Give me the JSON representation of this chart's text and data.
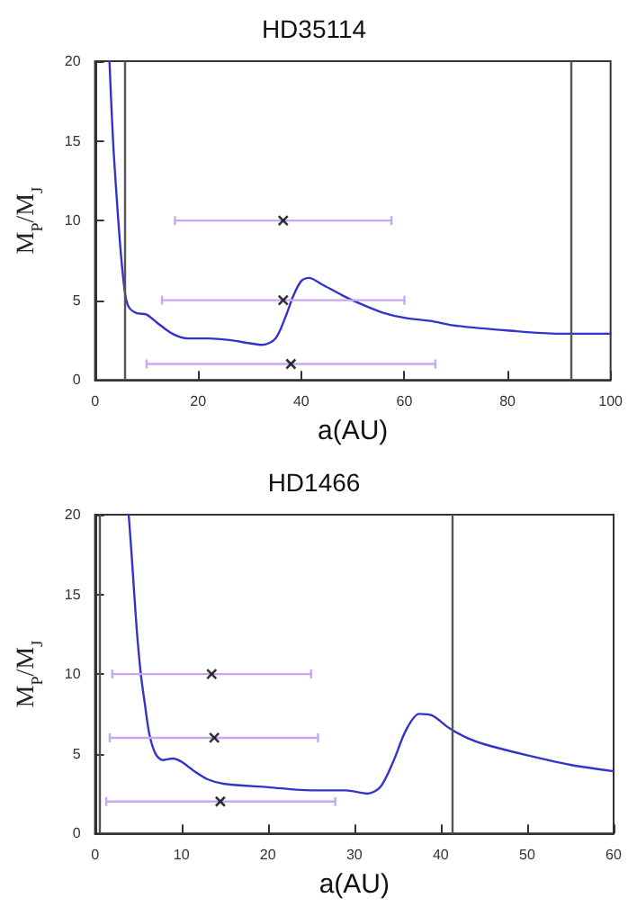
{
  "chart_data": [
    {
      "type": "line",
      "title": "HD35114",
      "xlabel": "a(AU)",
      "ylabel": "M$_{P}$/M$_{J}$",
      "xlim": [
        0,
        100
      ],
      "xticks": [
        0,
        20,
        40,
        60,
        80,
        100
      ],
      "ylim": [
        0,
        20
      ],
      "yticks": [
        0,
        5,
        10,
        15,
        20
      ],
      "grid": false,
      "series": [
        {
          "color": "#3333cc",
          "marker": "none",
          "line_style": "solid",
          "x": [
            2.8,
            3.5,
            4.3,
            5,
            5.8,
            6.5,
            8,
            10,
            12,
            15,
            18,
            22,
            26,
            30,
            32.5,
            35,
            37,
            38.5,
            40,
            41.5,
            44,
            48,
            52,
            56,
            60,
            65,
            70,
            80,
            90,
            100
          ],
          "values": [
            20,
            15,
            11,
            8,
            5.5,
            4.6,
            4.2,
            4.1,
            3.6,
            2.9,
            2.6,
            2.6,
            2.5,
            2.3,
            2.2,
            2.6,
            4,
            5.3,
            6.2,
            6.4,
            6,
            5.3,
            4.7,
            4.2,
            3.9,
            3.7,
            3.4,
            3.1,
            2.9,
            2.9
          ]
        },
        {
          "type": "scatter",
          "color": "#000000",
          "marker": "cross",
          "x": [
            36.5,
            36.5,
            38
          ],
          "values": [
            10,
            5,
            1
          ],
          "xerrors": [
            [
              15.5,
              57.5
            ],
            [
              13,
              60
            ],
            [
              10,
              66
            ]
          ]
        }
      ],
      "ref_lines": [
        {
          "axis": "x",
          "value": 5.8,
          "color": "#555555"
        },
        {
          "axis": "x",
          "value": 92.3,
          "color": "#555555"
        }
      ]
    },
    {
      "type": "line",
      "title": "HD1466",
      "xlabel": "a(AU)",
      "ylabel": "M$_{P}$/M$_{J}$",
      "xlim": [
        0,
        60
      ],
      "xticks": [
        0,
        10,
        20,
        30,
        40,
        50,
        60
      ],
      "ylim": [
        0,
        20
      ],
      "yticks": [
        0,
        5,
        10,
        15,
        20
      ],
      "grid": false,
      "series": [
        {
          "color": "#3333cc",
          "marker": "none",
          "line_style": "solid",
          "x": [
            3.9,
            4.3,
            4.8,
            5.3,
            5.8,
            6.3,
            7,
            7.8,
            9,
            10,
            11.5,
            13,
            15,
            20,
            25,
            29,
            31.5,
            33,
            34.5,
            36,
            37.5,
            39,
            41,
            43,
            45,
            50,
            55,
            60
          ],
          "values": [
            20,
            17,
            13,
            10,
            8,
            6.2,
            5,
            4.6,
            4.7,
            4.5,
            3.9,
            3.4,
            3.1,
            2.9,
            2.7,
            2.7,
            2.5,
            2.9,
            4.5,
            6.5,
            7.5,
            7.4,
            6.6,
            6,
            5.6,
            4.9,
            4.3,
            3.9
          ]
        },
        {
          "type": "scatter",
          "color": "#000000",
          "marker": "cross",
          "x": [
            13.5,
            13.8,
            14.5
          ],
          "values": [
            10,
            6,
            2
          ],
          "xerrors": [
            [
              2,
              25
            ],
            [
              1.7,
              25.8
            ],
            [
              1.3,
              27.8
            ]
          ]
        }
      ],
      "ref_lines": [
        {
          "axis": "x",
          "value": 0.6,
          "color": "#555555"
        },
        {
          "axis": "x",
          "value": 41.4,
          "color": "#555555"
        }
      ]
    }
  ]
}
